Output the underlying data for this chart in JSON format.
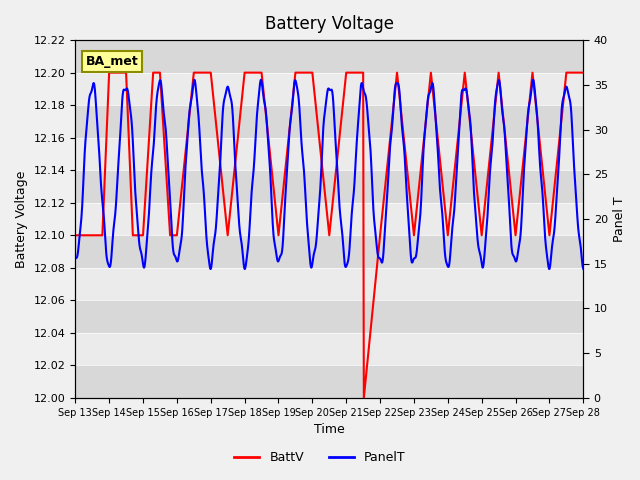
{
  "title": "Battery Voltage",
  "xlabel": "Time",
  "ylabel_left": "Battery Voltage",
  "ylabel_right": "Panel T",
  "ylim_left": [
    12.0,
    12.22
  ],
  "ylim_right": [
    0,
    40
  ],
  "yticks_left": [
    12.0,
    12.02,
    12.04,
    12.06,
    12.08,
    12.1,
    12.12,
    12.14,
    12.16,
    12.18,
    12.2,
    12.22
  ],
  "yticks_right": [
    0,
    5,
    10,
    15,
    20,
    25,
    30,
    35,
    40
  ],
  "x_tick_labels": [
    "Sep 13",
    "Sep 14",
    "Sep 15",
    "Sep 16",
    "Sep 17",
    "Sep 18",
    "Sep 19",
    "Sep 20",
    "Sep 21",
    "Sep 22",
    "Sep 23",
    "Sep 24",
    "Sep 25",
    "Sep 26",
    "Sep 27",
    "Sep 28"
  ],
  "background_color": "#f0f0f0",
  "plot_bg_color": "#e8e8e8",
  "band_color1": "#d8d8d8",
  "band_color2": "#ebebeb",
  "legend_items": [
    "BattV",
    "PanelT"
  ],
  "legend_colors": [
    "#ff0000",
    "#0000ff"
  ],
  "annotation_text": "BA_met",
  "annotation_bg": "#ffff99",
  "annotation_border": "#8b8b00",
  "batt_color": "#ff0000",
  "panel_color": "#0000ff",
  "batt_x": [
    13,
    13.4,
    13.8,
    14.0,
    14.0,
    14.5,
    14.5,
    14.7,
    14.7,
    15.0,
    15.0,
    15.3,
    15.3,
    15.5,
    15.5,
    15.8,
    15.8,
    16.0,
    16.0,
    16.5,
    16.5,
    17.0,
    17.0,
    17.5,
    17.5,
    18.0,
    18.0,
    18.5,
    18.5,
    19.0,
    19.0,
    19.5,
    19.5,
    20.0,
    20.0,
    20.5,
    20.5,
    21.0,
    21.0,
    21.5,
    21.5,
    21.52,
    21.52,
    22.0,
    22.0,
    22.5,
    22.5,
    23.0,
    23.0,
    23.5,
    23.5,
    24.0,
    24.0,
    24.5,
    24.5,
    25.0,
    25.0,
    25.5,
    25.5,
    26.0,
    26.0,
    26.5,
    26.5,
    27.0,
    27.0,
    27.5,
    27.5,
    28.0
  ],
  "batt_y": [
    12.1,
    12.1,
    12.1,
    12.2,
    12.2,
    12.2,
    12.2,
    12.1,
    12.1,
    12.1,
    12.1,
    12.2,
    12.2,
    12.2,
    12.2,
    12.1,
    12.1,
    12.1,
    12.1,
    12.2,
    12.2,
    12.2,
    12.2,
    12.1,
    12.1,
    12.2,
    12.2,
    12.2,
    12.2,
    12.1,
    12.1,
    12.2,
    12.2,
    12.2,
    12.2,
    12.1,
    12.1,
    12.2,
    12.2,
    12.2,
    12.2,
    12.0,
    12.0,
    12.1,
    12.1,
    12.2,
    12.2,
    12.1,
    12.1,
    12.2,
    12.2,
    12.1,
    12.1,
    12.2,
    12.2,
    12.1,
    12.1,
    12.2,
    12.2,
    12.1,
    12.1,
    12.2,
    12.2,
    12.1,
    12.1,
    12.2,
    12.2,
    12.2
  ]
}
